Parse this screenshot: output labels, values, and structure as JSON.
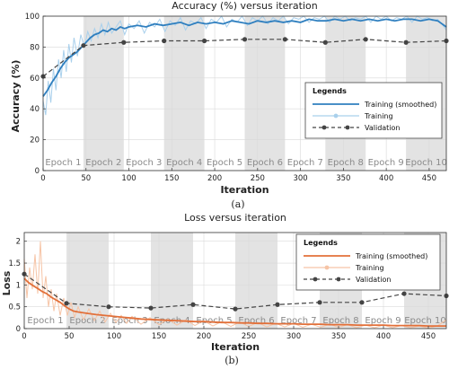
{
  "figure": {
    "captions": [
      "(a)",
      "(b)"
    ]
  },
  "colors": {
    "accuracy_smoothed": "#2f7fbf",
    "accuracy_raw": "#a9d0ec",
    "loss_smoothed": "#e2703a",
    "loss_raw": "#f6c4a6",
    "validation": "#444444",
    "band_shade": "#e3e3e3"
  },
  "chart_data": [
    {
      "type": "line",
      "title": "Accuracy (%) versus iteration",
      "xlabel": "Iteration",
      "ylabel": "Accuracy (%)",
      "xlim": [
        0,
        470
      ],
      "ylim": [
        0,
        100
      ],
      "xticks": [
        0,
        50,
        100,
        150,
        200,
        250,
        300,
        350,
        400,
        450
      ],
      "yticks": [
        0,
        20,
        40,
        60,
        80,
        100
      ],
      "grid": true,
      "legend_title": "Legends",
      "legend_position": "right",
      "epochs": [
        "Epoch 1",
        "Epoch 2",
        "Epoch 3",
        "Epoch 4",
        "Epoch 5",
        "Epoch 6",
        "Epoch 7",
        "Epoch 8",
        "Epoch 9",
        "Epoch 10"
      ],
      "iterations_per_epoch": 47,
      "series": [
        {
          "name": "Training (smoothed)",
          "style": "line",
          "x": [
            0,
            5,
            10,
            15,
            20,
            25,
            30,
            35,
            40,
            45,
            50,
            55,
            60,
            65,
            70,
            75,
            80,
            85,
            90,
            95,
            100,
            110,
            120,
            130,
            140,
            150,
            160,
            170,
            180,
            190,
            200,
            210,
            220,
            230,
            240,
            250,
            260,
            270,
            280,
            290,
            300,
            310,
            320,
            330,
            340,
            350,
            360,
            370,
            380,
            390,
            400,
            410,
            420,
            430,
            440,
            450,
            460,
            470
          ],
          "y": [
            48,
            52,
            57,
            61,
            66,
            70,
            73,
            75,
            77,
            80,
            83,
            86,
            88,
            89,
            91,
            90,
            92,
            91,
            93,
            92,
            93,
            94,
            93,
            95,
            94,
            95,
            96,
            94,
            96,
            95,
            96,
            95,
            97,
            96,
            95,
            97,
            96,
            97,
            96,
            97,
            96,
            98,
            97,
            97,
            98,
            97,
            98,
            97,
            98,
            97,
            98,
            97,
            98,
            98,
            97,
            98,
            97,
            93
          ]
        },
        {
          "name": "Training",
          "style": "line-raw",
          "x": [
            0,
            3,
            6,
            9,
            12,
            15,
            18,
            21,
            24,
            27,
            30,
            33,
            36,
            40,
            44,
            48,
            52,
            56,
            60,
            64,
            68,
            72,
            76,
            80,
            85,
            90,
            95,
            100,
            106,
            112,
            118,
            124,
            130,
            136,
            142,
            148,
            154,
            160,
            166,
            172,
            178,
            184,
            190,
            196,
            202,
            208,
            214,
            220,
            226,
            232,
            238,
            244,
            250,
            256,
            262,
            268,
            274,
            280,
            286,
            292,
            298,
            304,
            310,
            316,
            322,
            328,
            334,
            340,
            346,
            352,
            358,
            364,
            370,
            376,
            382,
            388,
            394,
            400,
            406,
            412,
            418,
            424,
            430,
            436,
            442,
            448,
            454,
            460,
            466,
            470
          ],
          "y": [
            45,
            36,
            58,
            44,
            66,
            52,
            72,
            60,
            78,
            64,
            82,
            70,
            86,
            74,
            88,
            80,
            90,
            84,
            92,
            86,
            95,
            88,
            96,
            89,
            93,
            97,
            88,
            95,
            92,
            97,
            89,
            96,
            93,
            98,
            90,
            97,
            94,
            99,
            91,
            97,
            95,
            99,
            92,
            98,
            96,
            100,
            93,
            98,
            96,
            100,
            94,
            99,
            97,
            100,
            95,
            99,
            97,
            100,
            95,
            99,
            98,
            100,
            96,
            99,
            98,
            100,
            96,
            100,
            98,
            100,
            97,
            99,
            98,
            100,
            96,
            100,
            98,
            100,
            97,
            99,
            98,
            100,
            96,
            100,
            98,
            99,
            97,
            98,
            94,
            91
          ]
        },
        {
          "name": "Validation",
          "style": "dashed-markers",
          "x": [
            0,
            47,
            94,
            141,
            188,
            235,
            282,
            329,
            376,
            423,
            470
          ],
          "y": [
            61,
            81,
            83,
            84,
            84,
            85,
            85,
            83,
            85,
            83,
            84
          ]
        }
      ]
    },
    {
      "type": "line",
      "title": "Loss versus iteration",
      "xlabel": "Iteration",
      "ylabel": "Loss",
      "xlim": [
        0,
        470
      ],
      "ylim": [
        0,
        2.2
      ],
      "xticks": [
        0,
        50,
        100,
        150,
        200,
        250,
        300,
        350,
        400,
        450
      ],
      "yticks": [
        0,
        0.5,
        1,
        1.5,
        2
      ],
      "grid": true,
      "legend_title": "Legends",
      "legend_position": "top-right",
      "epochs": [
        "Epoch 1",
        "Epoch 2",
        "Epoch 3",
        "Epoch 4",
        "Epoch 5",
        "Epoch 6",
        "Epoch 7",
        "Epoch 8",
        "Epoch 9",
        "Epoch 10"
      ],
      "iterations_per_epoch": 47,
      "series": [
        {
          "name": "Training (smoothed)",
          "style": "line",
          "x": [
            0,
            5,
            10,
            15,
            20,
            25,
            30,
            35,
            40,
            45,
            50,
            55,
            60,
            70,
            80,
            90,
            100,
            110,
            120,
            130,
            140,
            150,
            160,
            170,
            180,
            190,
            200,
            210,
            220,
            230,
            240,
            250,
            260,
            270,
            280,
            290,
            300,
            310,
            320,
            330,
            340,
            350,
            360,
            370,
            380,
            390,
            400,
            410,
            420,
            430,
            440,
            450,
            460,
            470
          ],
          "y": [
            1.15,
            1.05,
            0.98,
            0.92,
            0.85,
            0.8,
            0.72,
            0.66,
            0.6,
            0.52,
            0.45,
            0.4,
            0.38,
            0.35,
            0.32,
            0.3,
            0.28,
            0.26,
            0.24,
            0.22,
            0.21,
            0.2,
            0.19,
            0.18,
            0.17,
            0.16,
            0.16,
            0.15,
            0.14,
            0.14,
            0.13,
            0.13,
            0.12,
            0.12,
            0.11,
            0.11,
            0.11,
            0.1,
            0.1,
            0.1,
            0.09,
            0.09,
            0.09,
            0.08,
            0.08,
            0.08,
            0.08,
            0.07,
            0.07,
            0.07,
            0.07,
            0.06,
            0.06,
            0.06
          ]
        },
        {
          "name": "Training",
          "style": "line-raw",
          "x": [
            0,
            3,
            6,
            9,
            12,
            15,
            18,
            21,
            24,
            27,
            30,
            33,
            36,
            40,
            44,
            48,
            52,
            56,
            60,
            66,
            72,
            78,
            84,
            90,
            96,
            102,
            108,
            114,
            120,
            130,
            140,
            150,
            160,
            170,
            180,
            190,
            200,
            210,
            220,
            230,
            240,
            250,
            260,
            270,
            280,
            290,
            300,
            310,
            320,
            330,
            340,
            350,
            360,
            370,
            380,
            390,
            400,
            410,
            420,
            430,
            440,
            450,
            460,
            470
          ],
          "y": [
            1.6,
            0.7,
            1.4,
            0.9,
            1.7,
            0.8,
            2.0,
            0.7,
            1.2,
            0.5,
            0.9,
            0.4,
            0.8,
            0.3,
            0.7,
            0.3,
            0.6,
            0.25,
            0.5,
            0.2,
            0.45,
            0.18,
            0.4,
            0.15,
            0.35,
            0.14,
            0.3,
            0.12,
            0.28,
            0.1,
            0.25,
            0.09,
            0.22,
            0.08,
            0.2,
            0.07,
            0.18,
            0.06,
            0.16,
            0.05,
            0.15,
            0.05,
            0.14,
            0.04,
            0.12,
            0.04,
            0.12,
            0.03,
            0.1,
            0.03,
            0.1,
            0.03,
            0.09,
            0.02,
            0.08,
            0.02,
            0.08,
            0.02,
            0.07,
            0.02,
            0.06,
            0.01,
            0.06,
            0.2
          ]
        },
        {
          "name": "Validation",
          "style": "dashed-markers",
          "x": [
            0,
            47,
            94,
            141,
            188,
            235,
            282,
            329,
            376,
            423,
            470
          ],
          "y": [
            1.25,
            0.58,
            0.5,
            0.47,
            0.55,
            0.45,
            0.55,
            0.6,
            0.6,
            0.8,
            0.75
          ]
        }
      ]
    }
  ]
}
